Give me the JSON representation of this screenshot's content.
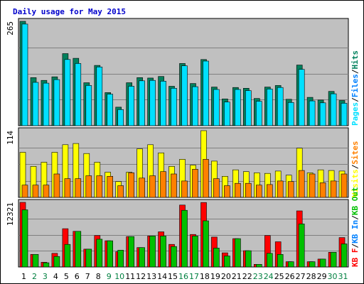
{
  "chart_data": {
    "type": "bar",
    "title": "Daily usage for May 2015",
    "categories": [
      "1",
      "2",
      "3",
      "4",
      "5",
      "6",
      "7",
      "8",
      "9",
      "10",
      "11",
      "12",
      "13",
      "14",
      "15",
      "16",
      "17",
      "18",
      "19",
      "20",
      "21",
      "22",
      "23",
      "24",
      "25",
      "26",
      "27",
      "28",
      "29",
      "30",
      "31"
    ],
    "weekend_days": [
      "2",
      "3",
      "9",
      "10",
      "16",
      "17",
      "23",
      "24",
      "30",
      "31"
    ],
    "colors": {
      "title": "#0000cc",
      "plot_bg": "#c0c0c0",
      "grid": "#808080",
      "weekday_label": "#000000",
      "weekend_label": "#008040",
      "hits": "#00805c",
      "files": "#0080ff",
      "pages": "#00e0ff",
      "visits": "#ffff00",
      "sites": "#ff8000",
      "kb_in": "#00c000",
      "kb_out": "#00c000",
      "kb_f": "#ff0000"
    },
    "panels": [
      {
        "name": "hits-files-pages",
        "max_label": "265",
        "ylim": [
          0,
          265
        ],
        "legend": [
          {
            "text": "Pages",
            "color": "#00e0ff"
          },
          {
            "text": "/",
            "color": "#000000"
          },
          {
            "text": "Files",
            "color": "#0080ff"
          },
          {
            "text": "/",
            "color": "#000000"
          },
          {
            "text": "Hits",
            "color": "#00805c"
          }
        ],
        "series": [
          {
            "name": "Hits",
            "color": "#00805c",
            "values": [
              265,
              122,
              115,
              124,
              183,
              171,
              109,
              153,
              84,
              47,
              109,
              122,
              121,
              125,
              100,
              158,
              107,
              168,
              98,
              68,
              97,
              95,
              69,
              98,
              102,
              67,
              154,
              72,
              65,
              87,
              64
            ]
          },
          {
            "name": "Pages",
            "color": "#00e0ff",
            "values": [
              258,
              110,
              108,
              117,
              168,
              158,
              102,
              149,
              80,
              41,
              100,
              114,
              115,
              113,
              95,
              152,
              99,
              164,
              92,
              60,
              92,
              89,
              62,
              93,
              97,
              59,
              143,
              63,
              58,
              81,
              57
            ]
          }
        ]
      },
      {
        "name": "visits-sites",
        "max_label": "114",
        "ylim": [
          0,
          114
        ],
        "legend": [
          {
            "text": "Visits",
            "color": "#ffff00"
          },
          {
            "text": "/",
            "color": "#000000"
          },
          {
            "text": "Sites",
            "color": "#ff8000"
          }
        ],
        "series": [
          {
            "name": "Visits",
            "color": "#ffff00",
            "values": [
              77,
              53,
              60,
              77,
              90,
              92,
              75,
              60,
              43,
              27,
              43,
              83,
              90,
              76,
              53,
              65,
              55,
              114,
              62,
              36,
              47,
              44,
              42,
              41,
              45,
              38,
              84,
              42,
              47,
              46,
              45
            ]
          },
          {
            "name": "Sites",
            "color": "#ff8000",
            "values": [
              21,
              21,
              21,
              40,
              32,
              32,
              37,
              37,
              36,
              20,
              42,
              33,
              37,
              44,
              40,
              28,
              48,
              65,
              32,
              20,
              24,
              24,
              21,
              22,
              28,
              27,
              46,
              40,
              25,
              28,
              40
            ]
          }
        ]
      },
      {
        "name": "kbytes",
        "max_label": "12321",
        "ylim": [
          0,
          12321
        ],
        "legend": [
          {
            "text": "KB F",
            "color": "#ff0000"
          },
          {
            "text": "/",
            "color": "#000000"
          },
          {
            "text": "KB In",
            "color": "#0080ff"
          },
          {
            "text": "/",
            "color": "#000000"
          },
          {
            "text": "KB Out",
            "color": "#00c000"
          }
        ],
        "series": [
          {
            "name": "KB F",
            "color": "#ff0000",
            "values": [
              12321,
              2400,
              900,
              2600,
              7300,
              6800,
              3400,
              6000,
              5000,
              2900,
              5800,
              3700,
              5900,
              6700,
              4300,
              11800,
              6200,
              12300,
              5700,
              2700,
              5400,
              3100,
              500,
              6000,
              4800,
              1000,
              10700,
              1000,
              1500,
              2800,
              5600
            ]
          },
          {
            "name": "KB Out",
            "color": "#00c000",
            "values": [
              10900,
              2400,
              800,
              2000,
              4300,
              6800,
              3400,
              5300,
              5000,
              3200,
              5800,
              3700,
              5900,
              5900,
              3900,
              10800,
              5900,
              8800,
              3600,
              2100,
              5400,
              3100,
              500,
              2600,
              2400,
              1000,
              8200,
              1000,
              1500,
              2800,
              4400
            ]
          }
        ]
      }
    ]
  }
}
